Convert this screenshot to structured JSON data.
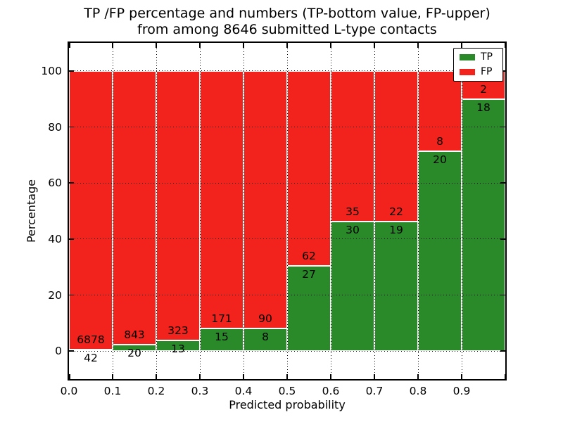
{
  "title": {
    "line1": "TP /FP percentage and numbers (TP-bottom value, FP-upper)",
    "line2": "from among 8646 submitted L-type contacts"
  },
  "chart_data": {
    "type": "bar",
    "stacked": true,
    "normalized_to_percent": true,
    "note": "Each bar stacks TP (bottom, green) and FP (top, red) to 100%; printed numbers are raw counts (TP below boundary, FP above boundary)",
    "title": "TP /FP percentage and numbers (TP-bottom value, FP-upper) from among 8646 submitted L-type contacts",
    "total_contacts": 8646,
    "bins": {
      "start": 0.0,
      "end": 1.0,
      "step": 0.1
    },
    "categories": [
      "0.0-0.1",
      "0.1-0.2",
      "0.2-0.3",
      "0.3-0.4",
      "0.4-0.5",
      "0.5-0.6",
      "0.6-0.7",
      "0.7-0.8",
      "0.8-0.9",
      "0.9-1.0"
    ],
    "series": [
      {
        "name": "TP",
        "color": "#2a8a2a",
        "counts": [
          42,
          20,
          13,
          15,
          8,
          27,
          30,
          19,
          20,
          18
        ]
      },
      {
        "name": "FP",
        "color": "#f2231c",
        "counts": [
          6878,
          843,
          323,
          171,
          90,
          62,
          35,
          22,
          8,
          2
        ]
      }
    ],
    "tp_percent_of_bar": [
      0.61,
      2.32,
      3.87,
      8.06,
      8.16,
      30.34,
      46.15,
      46.34,
      71.43,
      90.0
    ],
    "xlabel": "Predicted probability",
    "ylabel": "Percentage",
    "x_ticks": [
      "0.0",
      "0.1",
      "0.2",
      "0.3",
      "0.4",
      "0.5",
      "0.6",
      "0.7",
      "0.8",
      "0.9"
    ],
    "y_ticks": [
      0,
      20,
      40,
      60,
      80,
      100
    ],
    "ylim": [
      -10,
      110
    ],
    "xlim": [
      0.0,
      1.0
    ],
    "grid": "dotted black, horizontal every 20, vertical every 0.1",
    "bar_edge_color": "#ffffff",
    "legend": {
      "position": "upper right",
      "entries": [
        {
          "label": "TP",
          "color": "#2a8a2a"
        },
        {
          "label": "FP",
          "color": "#f2231c"
        }
      ]
    }
  }
}
